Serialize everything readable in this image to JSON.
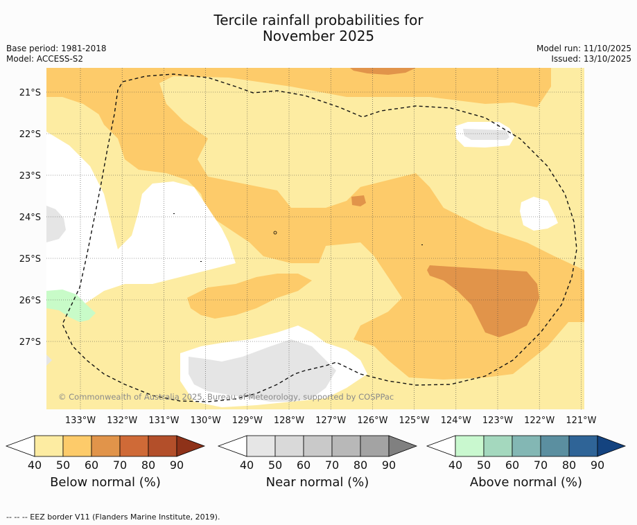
{
  "title": {
    "line1": "Tercile rainfall probabilities for",
    "line2": "November 2025"
  },
  "meta": {
    "base_period": "Base period: 1981-2018",
    "model": "Model: ACCESS-S2",
    "model_run": "Model run: 11/10/2025",
    "issued": "Issued: 13/10/2025"
  },
  "map": {
    "lat_labels": [
      "21°S",
      "22°S",
      "23°S",
      "24°S",
      "25°S",
      "26°S",
      "27°S"
    ],
    "lon_labels": [
      "133°W",
      "132°W",
      "131°W",
      "130°W",
      "129°W",
      "128°W",
      "127°W",
      "126°W",
      "125°W",
      "124°W",
      "123°W",
      "122°W",
      "121°W"
    ],
    "copyright": "© Commonwealth of Australia 2025, Bureau of Meteorology, supported by COSPPac",
    "colors": {
      "below_40": "#fdeca2",
      "below_50": "#fdcb6a",
      "below_60": "#e1944a",
      "white": "#ffffff",
      "near_40": "#e5e5e5",
      "above_40": "#c8fbc8"
    }
  },
  "colorbars": [
    {
      "label": "Below normal (%)",
      "ticks": [
        "40",
        "50",
        "60",
        "70",
        "80",
        "90"
      ],
      "colors": [
        "#fdeca2",
        "#fdcb6a",
        "#e1944a",
        "#cf6a37",
        "#b34f2a",
        "#8e3219"
      ]
    },
    {
      "label": "Near normal (%)",
      "ticks": [
        "40",
        "50",
        "60",
        "70",
        "80",
        "90"
      ],
      "colors": [
        "#e6e6e6",
        "#d9d9d9",
        "#c9c9c9",
        "#b8b8b8",
        "#a3a3a3",
        "#808080"
      ]
    },
    {
      "label": "Above normal (%)",
      "ticks": [
        "40",
        "50",
        "60",
        "70",
        "80",
        "90"
      ],
      "colors": [
        "#c9f8cf",
        "#a4d8be",
        "#83b7b4",
        "#5b8fa0",
        "#2f6497",
        "#14437f"
      ]
    }
  ],
  "footer": "--  --  -- EEZ border V11 (Flanders Marine Institute, 2019)."
}
